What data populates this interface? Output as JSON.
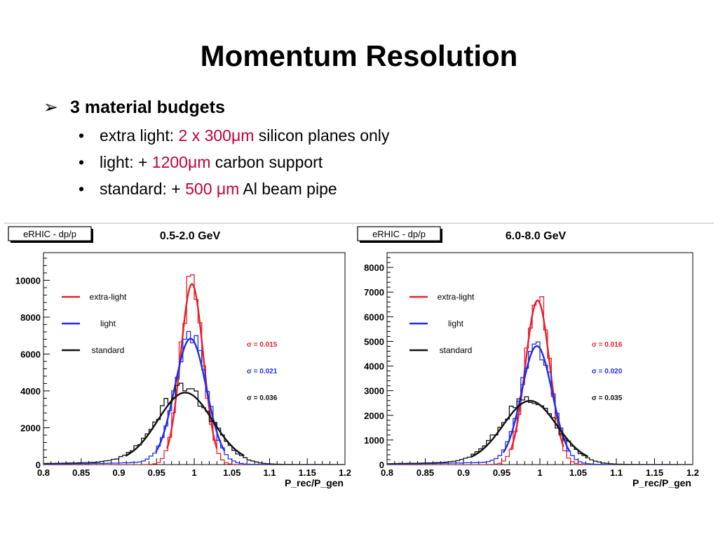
{
  "slide": {
    "title": "Momentum Resolution",
    "main_bullet": "3 material budgets",
    "sub_bullets": [
      {
        "prefix": "extra light: ",
        "highlight": "2 x 300μm",
        "suffix": " silicon planes only"
      },
      {
        "prefix": "light: + ",
        "highlight": "1200μm",
        "suffix": " carbon support"
      },
      {
        "prefix": "standard: + ",
        "highlight": "500 μm",
        "suffix": " Al beam pipe"
      }
    ],
    "bullet_glyph": "•",
    "arrow_glyph": "➢"
  },
  "colors": {
    "extra_light": "#e8202a",
    "light": "#1f2ee6",
    "standard": "#111111",
    "highlight": "#c0003a"
  },
  "chart_data": [
    {
      "type": "line",
      "title": "0.5-2.0 GeV",
      "canvas_label": "eRHIC - dp/p",
      "xlabel": "P_rec/P_gen",
      "ylabel": "",
      "xlim": [
        0.8,
        1.2
      ],
      "ylim": [
        0,
        11500
      ],
      "xticks": [
        0.8,
        0.85,
        0.9,
        0.95,
        1,
        1.05,
        1.1,
        1.15,
        1.2
      ],
      "xtick_labels": [
        "0.8",
        "0.85",
        "0.9",
        "0.95",
        "1",
        "1.05",
        "1.1",
        "1.15",
        "1.2"
      ],
      "yticks": [
        0,
        2000,
        4000,
        6000,
        8000,
        10000
      ],
      "ytick_labels": [
        "0",
        "2000",
        "4000",
        "6000",
        "8000",
        "10000"
      ],
      "legend_position": "top-left",
      "grid": false,
      "series": [
        {
          "name": "extra-light",
          "sigma_label": "σ = 0.015",
          "sigma": 0.015,
          "mean": 0.997,
          "peak": 10000,
          "tail": 0
        },
        {
          "name": "light",
          "sigma_label": "σ = 0.021",
          "sigma": 0.021,
          "mean": 0.995,
          "peak": 6900,
          "tail": 250
        },
        {
          "name": "standard",
          "sigma_label": "σ = 0.036",
          "sigma": 0.036,
          "mean": 0.988,
          "peak": 3850,
          "tail": 450
        }
      ]
    },
    {
      "type": "line",
      "title": "6.0-8.0 GeV",
      "canvas_label": "eRHIC - dp/p",
      "xlabel": "P_rec/P_gen",
      "ylabel": "",
      "xlim": [
        0.8,
        1.2
      ],
      "ylim": [
        0,
        8600
      ],
      "xticks": [
        0.8,
        0.85,
        0.9,
        0.95,
        1,
        1.05,
        1.1,
        1.15,
        1.2
      ],
      "xtick_labels": [
        "0.8",
        "0.85",
        "0.9",
        "0.95",
        "1",
        "1.05",
        "1.1",
        "1.15",
        "1.2"
      ],
      "yticks": [
        0,
        1000,
        2000,
        3000,
        4000,
        5000,
        6000,
        7000,
        8000
      ],
      "ytick_labels": [
        "0",
        "1000",
        "2000",
        "3000",
        "4000",
        "5000",
        "6000",
        "7000",
        "8000"
      ],
      "legend_position": "top-left",
      "grid": false,
      "series": [
        {
          "name": "extra-light",
          "sigma_label": "σ = 0.016",
          "sigma": 0.016,
          "mean": 0.997,
          "peak": 6800,
          "tail": 0
        },
        {
          "name": "light",
          "sigma_label": "σ = 0.020",
          "sigma": 0.02,
          "mean": 0.996,
          "peak": 4850,
          "tail": 200
        },
        {
          "name": "standard",
          "sigma_label": "σ = 0.035",
          "sigma": 0.035,
          "mean": 0.987,
          "peak": 2550,
          "tail": 300
        }
      ]
    }
  ]
}
